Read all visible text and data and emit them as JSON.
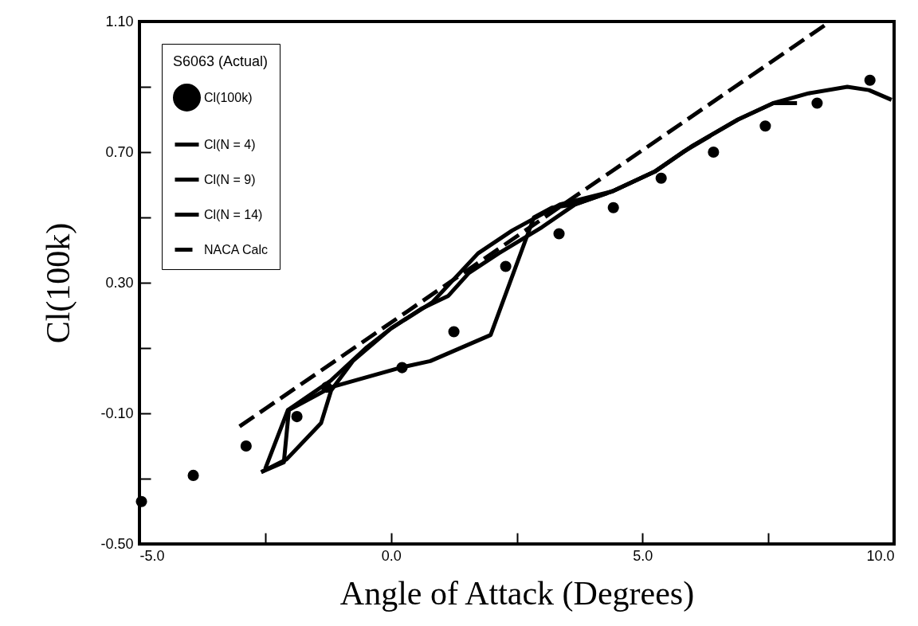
{
  "chart_data": {
    "type": "line",
    "xlabel": "Angle of Attack (Degrees)",
    "ylabel": "Cl(100k)",
    "legend_title": "S6063 (Actual)",
    "legend": "top left",
    "grid": false,
    "xlim": [
      -5,
      10
    ],
    "ylim": [
      -0.5,
      1.1
    ],
    "xticks": [
      {
        "value": -5,
        "label": "-5.0"
      },
      {
        "value": -2.5,
        "label": null
      },
      {
        "value": 0,
        "label": "0.0"
      },
      {
        "value": 2.5,
        "label": null
      },
      {
        "value": 5,
        "label": "5.0"
      },
      {
        "value": 7.5,
        "label": null
      },
      {
        "value": 10,
        "label": "10.0"
      }
    ],
    "yticks": [
      {
        "value": -0.5,
        "label": "-0.50"
      },
      {
        "value": -0.3,
        "label": null
      },
      {
        "value": -0.1,
        "label": "-0.10"
      },
      {
        "value": 0.1,
        "label": null
      },
      {
        "value": 0.3,
        "label": "0.30"
      },
      {
        "value": 0.5,
        "label": null
      },
      {
        "value": 0.7,
        "label": "0.70"
      },
      {
        "value": 0.9,
        "label": null
      },
      {
        "value": 1.1,
        "label": "1.10"
      }
    ],
    "series": [
      {
        "name": "Cl(100k)",
        "type": "scatter",
        "marker": "circle",
        "color": "#000000",
        "x": [
          -4.96,
          -3.93,
          -2.88,
          -1.87,
          -1.28,
          0.22,
          1.25,
          2.28,
          3.34,
          4.42,
          5.37,
          6.41,
          7.44,
          8.47,
          9.52
        ],
        "values": [
          -0.37,
          -0.29,
          -0.2,
          -0.11,
          -0.02,
          0.04,
          0.15,
          0.35,
          0.45,
          0.53,
          0.62,
          0.7,
          0.78,
          0.85,
          0.92
        ]
      },
      {
        "name": "Cl(N = 4)",
        "type": "line",
        "line_style": "solid",
        "color": "#000000",
        "x": [
          -2.58,
          -2.13,
          -2.03,
          -1.19,
          0.19,
          0.78,
          1.98,
          2.84,
          3.2,
          3.66,
          4.4,
          5.24,
          5.8,
          6.35
        ],
        "values": [
          -0.28,
          -0.25,
          -0.09,
          -0.02,
          0.04,
          0.06,
          0.14,
          0.5,
          0.53,
          0.54,
          0.58,
          0.64,
          0.7,
          0.75
        ]
      },
      {
        "name": "Cl(N = 9)",
        "type": "line",
        "line_style": "solid",
        "color": "#000000",
        "x": [
          -2.58,
          -2.07,
          -1.39,
          -1.19,
          -0.76,
          0,
          0.82,
          1.73,
          2.41,
          3.36,
          4.4,
          5.24,
          6.0,
          6.9,
          7.6,
          8.07
        ],
        "values": [
          -0.28,
          -0.24,
          -0.13,
          -0.03,
          0.06,
          0.16,
          0.24,
          0.39,
          0.46,
          0.54,
          0.58,
          0.64,
          0.72,
          0.8,
          0.85,
          0.85
        ]
      },
      {
        "name": "Cl(N = 14)",
        "type": "line",
        "line_style": "solid",
        "color": "#000000",
        "x": [
          -2.5,
          -2.05,
          -1.2,
          -0.5,
          0,
          0.6,
          1.14,
          1.55,
          2.14,
          3.0,
          3.66,
          4.4,
          5.24,
          6.0,
          6.9,
          7.6,
          8.3,
          9.07,
          9.5,
          9.95
        ],
        "values": [
          -0.27,
          -0.09,
          0.0,
          0.1,
          0.16,
          0.22,
          0.26,
          0.33,
          0.39,
          0.47,
          0.54,
          0.58,
          0.64,
          0.72,
          0.8,
          0.85,
          0.88,
          0.9,
          0.89,
          0.86
        ]
      },
      {
        "name": "NACA Calc",
        "type": "line",
        "line_style": "dashed",
        "color": "#000000",
        "x": [
          -3.01,
          8.73
        ],
        "values": [
          -0.14,
          1.1
        ]
      }
    ]
  }
}
